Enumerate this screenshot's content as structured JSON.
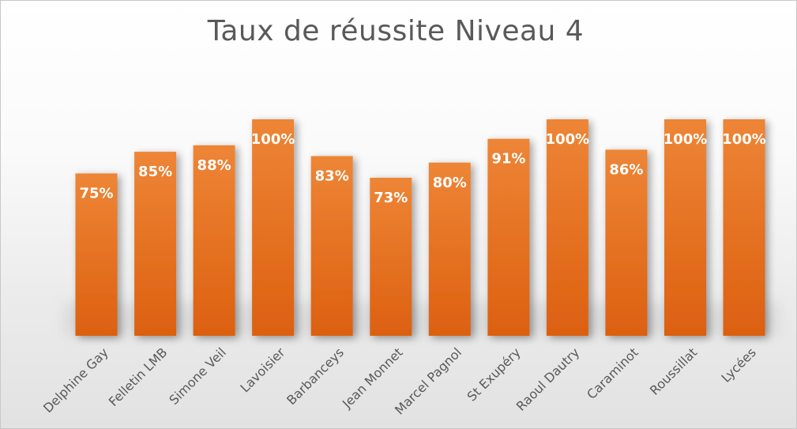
{
  "chart_data": {
    "type": "bar",
    "title": "Taux de réussite Niveau 4",
    "xlabel": "",
    "ylabel": "",
    "categories": [
      "Delphine Gay",
      "Felletin LMB",
      "Simone Veil",
      "Lavoisier",
      "Barbanceys",
      "Jean Monnet",
      "Marcel Pagnol",
      "St Exupéry",
      "Raoul Dautry",
      "Caraminot",
      "Roussillat",
      "Lycées"
    ],
    "values": [
      75,
      85,
      88,
      100,
      83,
      73,
      80,
      91,
      100,
      86,
      100,
      100
    ],
    "data_labels": [
      "75%",
      "85%",
      "88%",
      "100%",
      "83%",
      "73%",
      "80%",
      "91%",
      "100%",
      "86%",
      "100%",
      "100%"
    ],
    "ylim": [
      0,
      100
    ],
    "grid": false,
    "legend": "none",
    "colors": {
      "bar_top": "#ee8536",
      "bar_bottom": "#dc6010",
      "data_label": "#ffffff",
      "axis_label": "#595959",
      "title": "#595959"
    }
  }
}
